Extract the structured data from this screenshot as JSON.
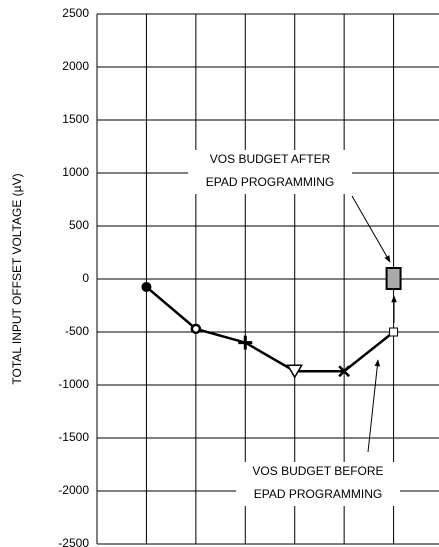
{
  "chart_data": {
    "type": "line",
    "ylabel": "TOTAL INPUT OFFSET VOLTAGE (µV)",
    "xlim": [
      0,
      7
    ],
    "xticks": [
      1,
      2,
      3,
      4,
      5,
      6
    ],
    "ylim": [
      -2500,
      2500
    ],
    "yticks": [
      -2500,
      -2000,
      -1500,
      -1000,
      -500,
      0,
      500,
      1000,
      1500,
      2000,
      2500
    ],
    "grid": true,
    "series": [
      {
        "name": "VOS BUDGET BEFORE EPAD PROGRAMMING",
        "color": "#000000",
        "x": [
          1,
          2,
          3,
          4,
          5,
          6
        ],
        "values": [
          -75,
          -470,
          -600,
          -870,
          -870,
          -500
        ],
        "markers": [
          "circle",
          "ring",
          "plus",
          "triangle",
          "x",
          "square"
        ]
      },
      {
        "name": "VOS BUDGET AFTER EPAD PROGRAMMING",
        "color": "#aaaaaa",
        "x": [
          6
        ],
        "values": [
          0
        ],
        "markers": [
          "box"
        ]
      }
    ],
    "annotations": [
      {
        "lines": [
          "VOS BUDGET AFTER",
          "EPAD PROGRAMMING"
        ]
      },
      {
        "lines": [
          "VOS BUDGET BEFORE",
          "EPAD PROGRAMMING"
        ]
      }
    ]
  }
}
